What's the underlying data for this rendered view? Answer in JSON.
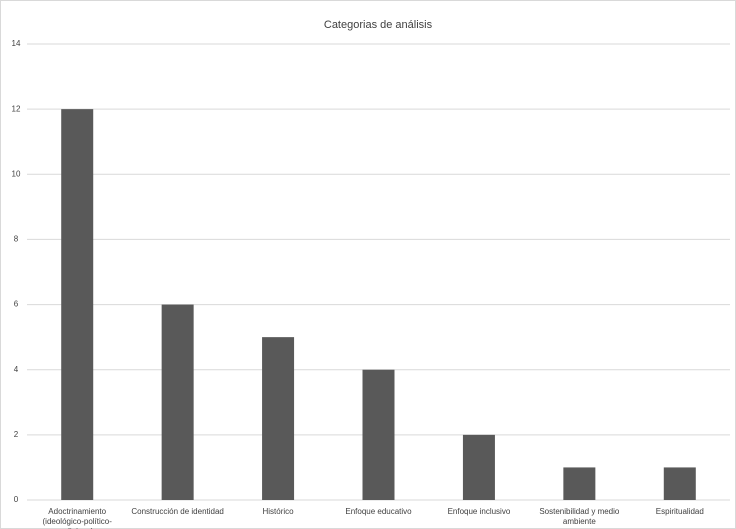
{
  "chart_data": {
    "type": "bar",
    "title": "Categorias de análisis",
    "categories": [
      "Adoctrinamiento (ideológico-político-religioso)",
      "Construcción de identidad",
      "Histórico",
      "Enfoque educativo",
      "Enfoque inclusivo",
      "Sostenibilidad y medio ambiente",
      "Espiritualidad"
    ],
    "values": [
      12,
      6,
      5,
      4,
      2,
      1,
      1
    ],
    "color": "#595959",
    "ylim": [
      0,
      14
    ],
    "yticks": [
      0,
      2,
      4,
      6,
      8,
      10,
      12,
      14
    ],
    "grid": true
  }
}
